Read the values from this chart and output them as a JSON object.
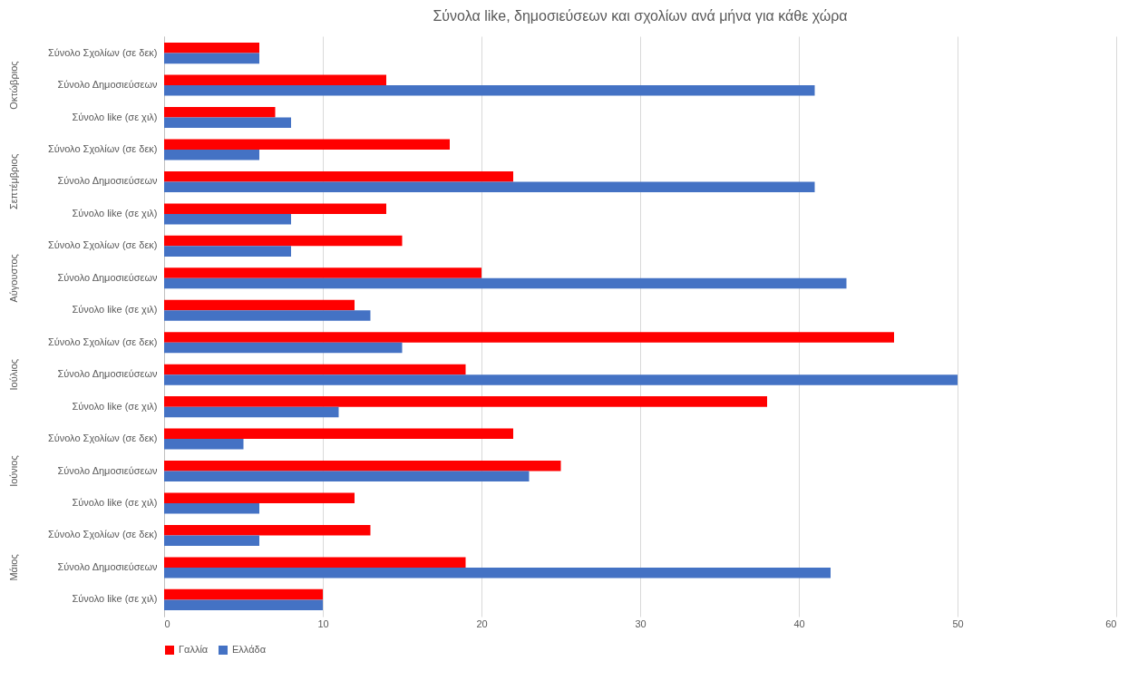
{
  "chart_data": {
    "type": "bar",
    "orientation": "horizontal",
    "title": "Σύνολα like, δημοσιεύσεων και σχολίων ανά μήνα για κάθε χώρα",
    "categories": [
      "Σύνολο Σχολίων (σε δεκ)",
      "Σύνολο Δημοσιεύσεων",
      "Σύνολο like (σε χιλ)",
      "Σύνολο Σχολίων (σε δεκ)",
      "Σύνολο Δημοσιεύσεων",
      "Σύνολο like (σε χιλ)",
      "Σύνολο Σχολίων (σε δεκ)",
      "Σύνολο Δημοσιεύσεων",
      "Σύνολο like (σε χιλ)",
      "Σύνολο Σχολίων (σε δεκ)",
      "Σύνολο Δημοσιεύσεων",
      "Σύνολο like (σε χιλ)",
      "Σύνολο Σχολίων (σε δεκ)",
      "Σύνολο Δημοσιεύσεων",
      "Σύνολο like (σε χιλ)",
      "Σύνολο Σχολίων (σε δεκ)",
      "Σύνολο Δημοσιεύσεων",
      "Σύνολο like (σε χιλ)"
    ],
    "series": [
      {
        "name": "Γαλλία",
        "color": "#ff0000",
        "values": [
          6,
          14,
          7,
          18,
          22,
          14,
          15,
          20,
          12,
          46,
          19,
          38,
          22,
          25,
          12,
          13,
          19,
          10
        ]
      },
      {
        "name": "Ελλάδα",
        "color": "#4472c4",
        "values": [
          6,
          41,
          8,
          6,
          41,
          8,
          8,
          43,
          13,
          15,
          50,
          11,
          5,
          23,
          6,
          6,
          42,
          10
        ]
      }
    ],
    "annotations": [
      "Οκτώβριος",
      "Σεπτέμβριος",
      "Αύγουστος",
      "Ιούλιος",
      "Ιούνιος",
      "Μάιος"
    ],
    "xlim": [
      0,
      60
    ],
    "xticks": [
      0,
      10,
      20,
      30,
      40,
      50,
      60
    ],
    "grid": "x",
    "legend": "bottom"
  }
}
